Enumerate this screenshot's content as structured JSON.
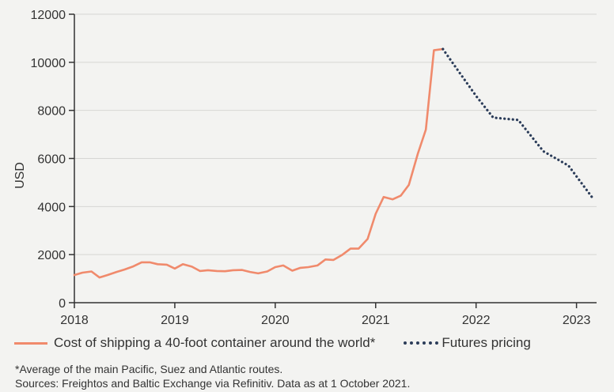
{
  "chart_data": {
    "type": "line",
    "title": "",
    "xlabel": "",
    "ylabel": "USD",
    "ylim": [
      0,
      12000
    ],
    "xlim": [
      2018,
      2023.2
    ],
    "yticks": [
      0,
      2000,
      4000,
      6000,
      8000,
      10000,
      12000
    ],
    "ytick_labels": [
      "0",
      "2000",
      "4000",
      "6000",
      "8000",
      "10000",
      "12000"
    ],
    "xticks": [
      2018,
      2019,
      2020,
      2021,
      2022,
      2023
    ],
    "xtick_labels": [
      "2018",
      "2019",
      "2020",
      "2021",
      "2022",
      "2023"
    ],
    "series": [
      {
        "name": "Cost of shipping a 40-foot container around the world*",
        "style": "solid",
        "color": "#f08a6c",
        "x": [
          2018.0,
          2018.08,
          2018.17,
          2018.25,
          2018.33,
          2018.42,
          2018.5,
          2018.58,
          2018.67,
          2018.75,
          2018.83,
          2018.92,
          2019.0,
          2019.08,
          2019.17,
          2019.25,
          2019.33,
          2019.42,
          2019.5,
          2019.58,
          2019.67,
          2019.75,
          2019.83,
          2019.92,
          2020.0,
          2020.08,
          2020.17,
          2020.25,
          2020.33,
          2020.42,
          2020.5,
          2020.58,
          2020.67,
          2020.75,
          2020.83,
          2020.92,
          2021.0,
          2021.08,
          2021.17,
          2021.25,
          2021.33,
          2021.42,
          2021.5,
          2021.58,
          2021.67
        ],
        "values": [
          1150,
          1250,
          1300,
          1050,
          1150,
          1280,
          1380,
          1500,
          1680,
          1680,
          1600,
          1580,
          1420,
          1600,
          1500,
          1320,
          1350,
          1320,
          1310,
          1350,
          1360,
          1280,
          1220,
          1300,
          1480,
          1550,
          1330,
          1450,
          1480,
          1550,
          1800,
          1780,
          2000,
          2250,
          2250,
          2650,
          3700,
          4400,
          4300,
          4450,
          4900,
          6200,
          7200,
          10500,
          10550
        ]
      },
      {
        "name": "Futures pricing",
        "style": "dotted",
        "color": "#2b3c59",
        "x": [
          2021.67,
          2021.83,
          2022.0,
          2022.17,
          2022.42,
          2022.67,
          2022.92,
          2023.17
        ],
        "values": [
          10550,
          9600,
          8600,
          7700,
          7600,
          6300,
          5700,
          4300
        ]
      }
    ]
  },
  "legend": {
    "main": "Cost of shipping a 40-foot container around the world*",
    "futures": "Futures pricing"
  },
  "notes": {
    "line1": "*Average of the main Pacific, Suez and Atlantic routes.",
    "line2": "Sources: Freightos and Baltic Exchange via Refinitiv. Data as at 1 October 2021."
  }
}
